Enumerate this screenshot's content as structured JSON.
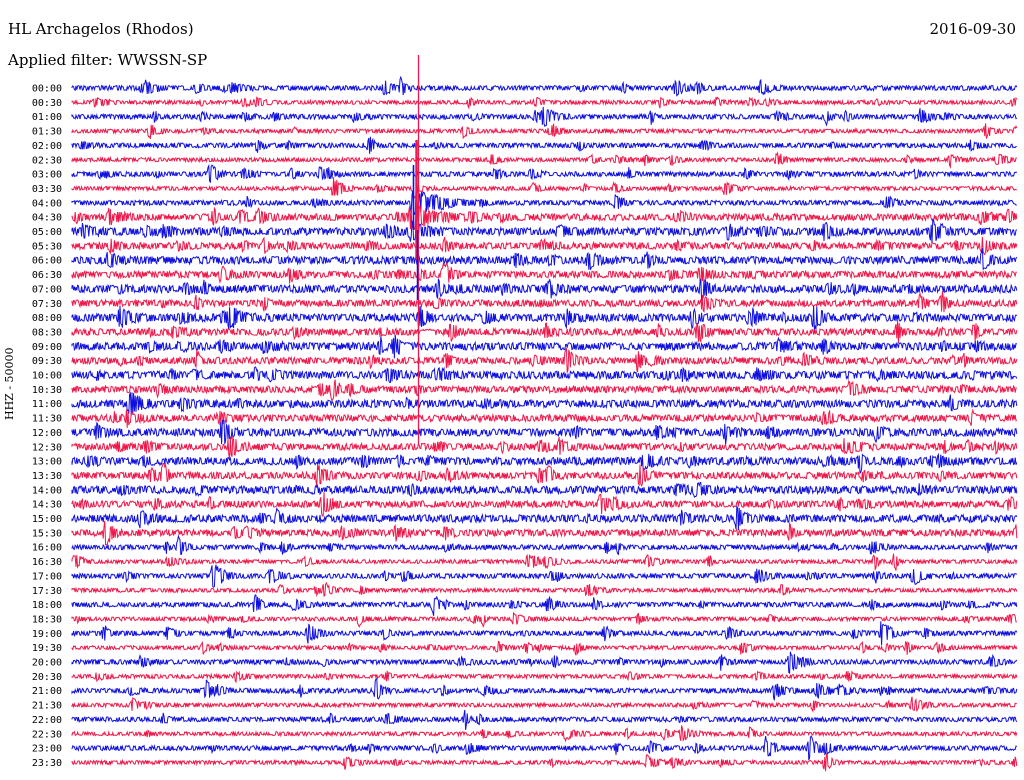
{
  "header": {
    "station": "HL Archagelos (Rhodos)",
    "date": "2016-09-30",
    "filter": "Applied filter: WWSSN-SP"
  },
  "colors": {
    "even_row": "#1010e0",
    "odd_row": "#f0184a"
  },
  "chart_data": {
    "type": "line",
    "title": "HL Archagelos (Rhodos)",
    "subtitle": "Applied filter: WWSSN-SP",
    "ylabel": "HHZ - 50000",
    "xlabel": "",
    "grid": false,
    "rows": [
      "00:00",
      "00:30",
      "01:00",
      "01:30",
      "02:00",
      "02:30",
      "03:00",
      "03:30",
      "04:00",
      "04:30",
      "05:00",
      "05:30",
      "06:00",
      "06:30",
      "07:00",
      "07:30",
      "08:00",
      "08:30",
      "09:00",
      "09:30",
      "10:00",
      "10:30",
      "11:00",
      "11:30",
      "12:00",
      "12:30",
      "13:00",
      "13:30",
      "14:00",
      "14:30",
      "15:00",
      "15:30",
      "16:00",
      "16:30",
      "17:00",
      "17:30",
      "18:00",
      "18:30",
      "19:00",
      "19:30",
      "20:00",
      "20:30",
      "21:00",
      "21:30",
      "22:00",
      "22:30",
      "23:00",
      "23:30"
    ],
    "row_colors": [
      "#1010e0",
      "#f0184a"
    ],
    "row_minutes": 30,
    "major_event": {
      "row": "04:00",
      "minute": 11,
      "label": ""
    }
  }
}
